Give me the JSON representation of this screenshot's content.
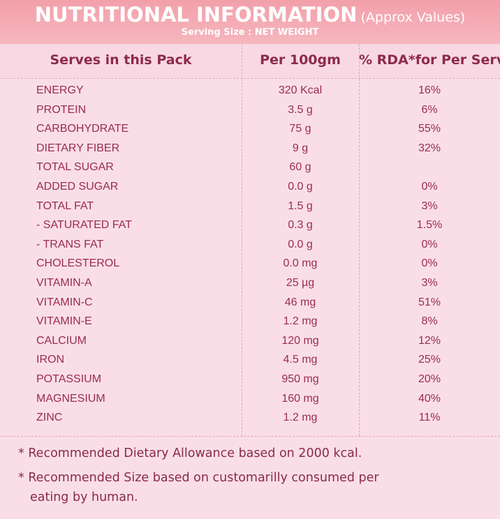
{
  "header": {
    "title": "NUTRITIONAL INFORMATION",
    "note": "(Approx Values)",
    "subtitle": "Serving Size : NET WEIGHT"
  },
  "table": {
    "columns": [
      "Serves in this Pack",
      "Per 100gm",
      "% RDA*for Per Serve"
    ],
    "rows": [
      [
        "ENERGY",
        "320 Kcal",
        "16%"
      ],
      [
        "PROTEIN",
        "3.5 g",
        "6%"
      ],
      [
        "CARBOHYDRATE",
        "75 g",
        "55%"
      ],
      [
        "DIETARY FIBER",
        "9 g",
        "32%"
      ],
      [
        "TOTAL SUGAR",
        "60 g",
        null
      ],
      [
        "ADDED SUGAR",
        "0.0 g",
        "0%"
      ],
      [
        "TOTAL FAT",
        "1.5 g",
        "3%"
      ],
      [
        "- SATURATED FAT",
        "0.3 g",
        "1.5%"
      ],
      [
        "- TRANS FAT",
        "0.0 g",
        "0%"
      ],
      [
        "CHOLESTEROL",
        "0.0 mg",
        "0%"
      ],
      [
        "VITAMIN-A",
        "25 µg",
        "3%"
      ],
      [
        "VITAMIN-C",
        "46 mg",
        "51%"
      ],
      [
        "VITAMIN-E",
        "1.2 mg",
        "8%"
      ],
      [
        "CALCIUM",
        "120 mg",
        "12%"
      ],
      [
        "IRON",
        "4.5 mg",
        "25%"
      ],
      [
        "POTASSIUM",
        "950 mg",
        "20%"
      ],
      [
        "MAGNESIUM",
        "160 mg",
        "40%"
      ],
      [
        "ZINC",
        "1.2 mg",
        "11%"
      ]
    ]
  },
  "footnotes": [
    "* Recommended  Dietary Allowance based on 2000 kcal.",
    "* Recommended Size based on customarilly consumed per eating by human."
  ]
}
